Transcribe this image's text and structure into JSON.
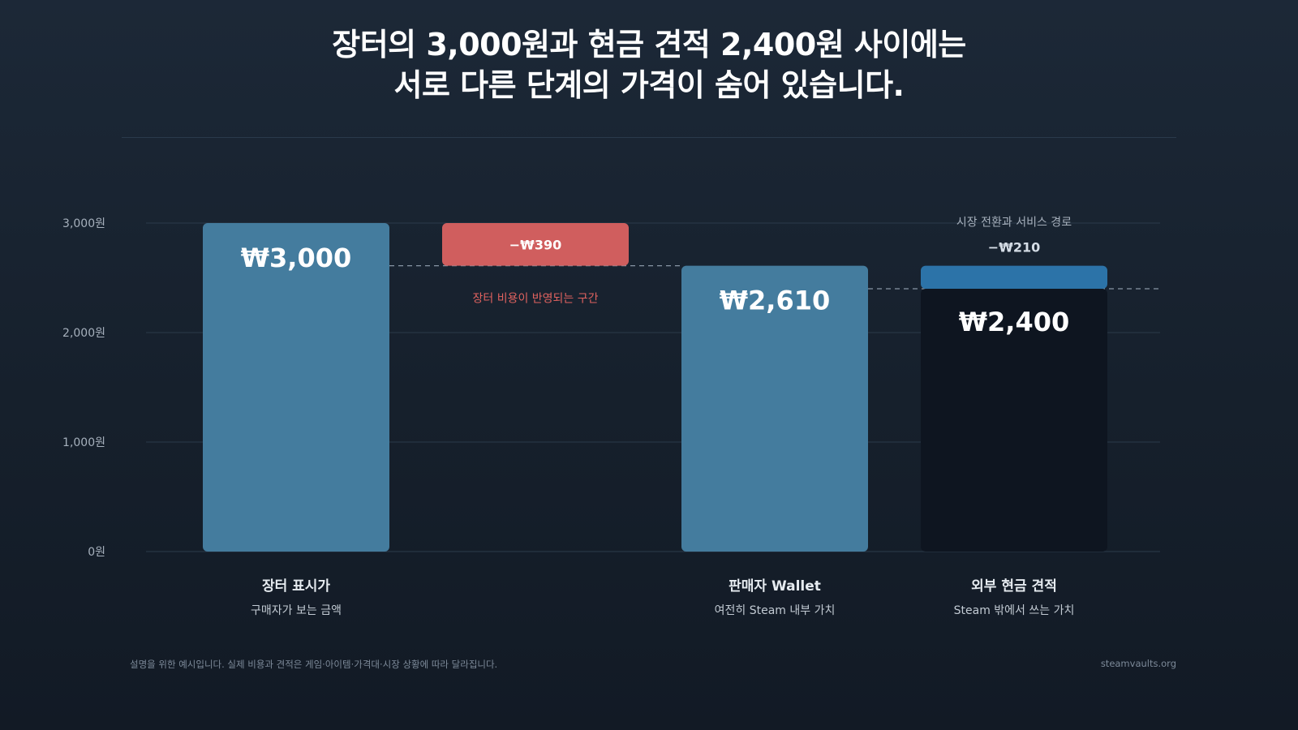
{
  "title": {
    "line1": "장터의 3,000원과 현금 견적 2,400원 사이에는",
    "line2": "서로 다른 단계의 가격이 숨어 있습니다."
  },
  "chart_data": {
    "type": "bar",
    "subtype": "waterfall",
    "ylim": [
      0,
      3000
    ],
    "y_ticks": [
      {
        "value": 0,
        "label": "0원"
      },
      {
        "value": 1000,
        "label": "1,000원"
      },
      {
        "value": 2000,
        "label": "2,000원"
      },
      {
        "value": 3000,
        "label": "3,000원"
      }
    ],
    "grid": true,
    "bars": [
      {
        "kind": "total",
        "from": 0,
        "to": 3000,
        "value_label": "₩3,000",
        "name": "장터 표시가",
        "sublabel": "구매자가 보는 금액",
        "color": "#447c9e"
      },
      {
        "kind": "delta",
        "from": 2610,
        "to": 3000,
        "value_label": "−₩390",
        "annotation": "장터 비용이 반영되는 구간",
        "color": "#d05e5e"
      },
      {
        "kind": "total",
        "from": 0,
        "to": 2610,
        "value_label": "₩2,610",
        "name": "판매자 Wallet",
        "sublabel": "여전히 Steam 내부 가치",
        "color": "#447c9e"
      },
      {
        "kind": "total_with_delta",
        "from": 0,
        "to": 2400,
        "delta_to": 2610,
        "value_label": "₩2,400",
        "delta_label": "−₩210",
        "annotation": "시장 전환과 서비스 경로",
        "name": "외부 현금 견적",
        "sublabel": "Steam 밖에서 쓰는 가치",
        "color": "#0e1520",
        "delta_color": "#2c73a8"
      }
    ]
  },
  "footnote": "설명을 위한 예시입니다. 실제 비용과 견적은 게임·아이템·가격대·시장 상황에 따라 달라집니다.",
  "site": "steamvaults.org"
}
